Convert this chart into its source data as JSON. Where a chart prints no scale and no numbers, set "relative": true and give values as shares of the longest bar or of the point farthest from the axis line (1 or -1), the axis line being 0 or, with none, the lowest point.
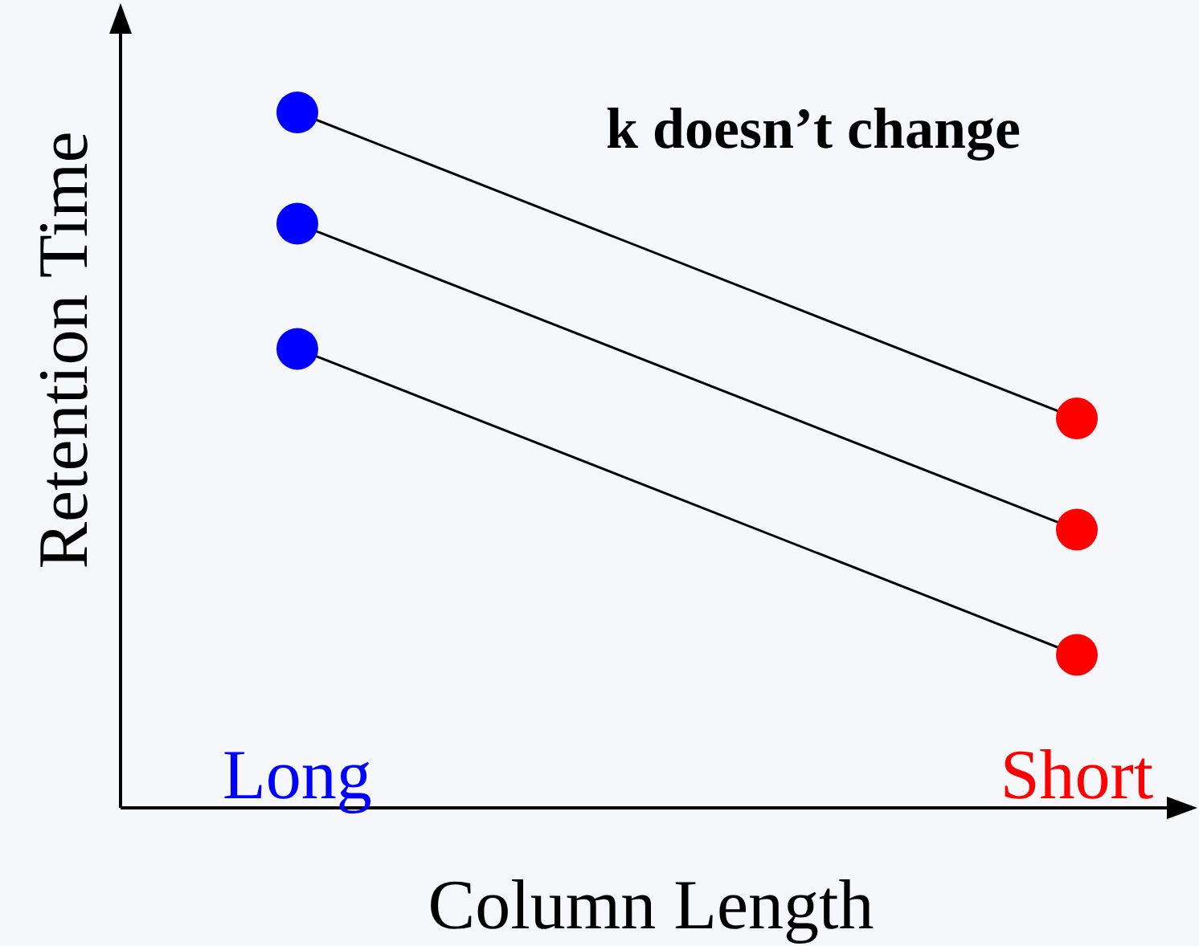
{
  "chart_data": {
    "type": "line",
    "relative": true,
    "xlabel": "Column Length",
    "ylabel": "Retention Time",
    "categories": [
      "Long",
      "Short"
    ],
    "marker": "circle",
    "annotations": [
      "k doesn’t change"
    ],
    "series": [
      {
        "color": "#000000",
        "colors": [
          "#0000ff",
          "#ff0000"
        ],
        "values": [
          1,
          0.56
        ]
      },
      {
        "color": "#000000",
        "colors": [
          "#0000ff",
          "#ff0000"
        ],
        "values": [
          0.84,
          0.4
        ]
      },
      {
        "color": "#000000",
        "colors": [
          "#0000ff",
          "#ff0000"
        ],
        "values": [
          0.66,
          0.22
        ]
      }
    ]
  }
}
